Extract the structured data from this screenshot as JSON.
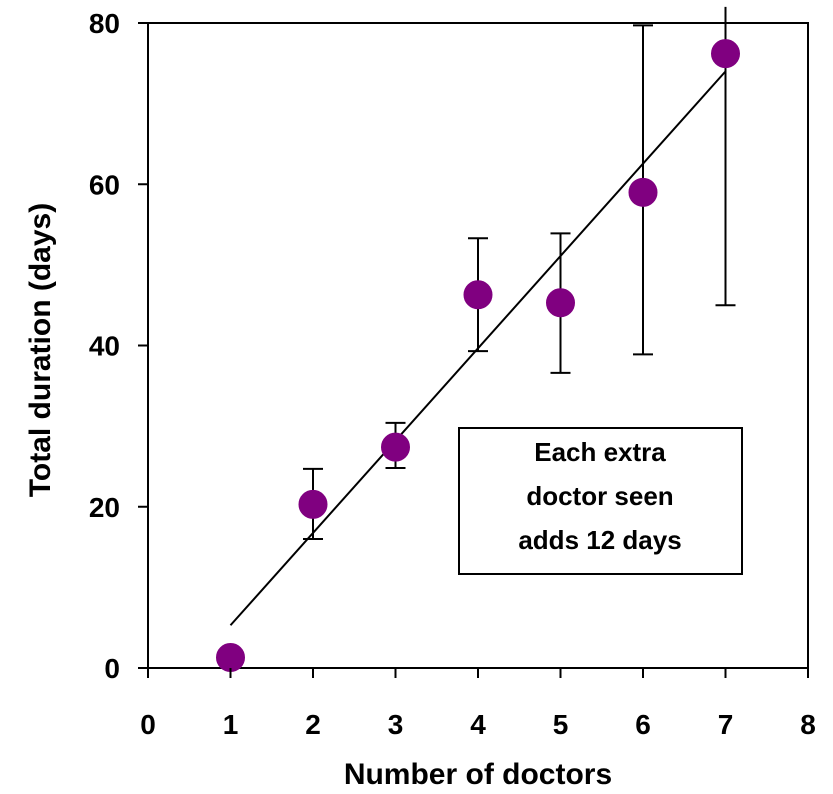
{
  "chart_data": {
    "type": "scatter",
    "xlabel": "Number of doctors",
    "ylabel": "Total duration (days)",
    "xlim": [
      0,
      8
    ],
    "ylim": [
      0,
      80
    ],
    "xticks": [
      "0",
      "1",
      "2",
      "3",
      "4",
      "5",
      "6",
      "7",
      "8"
    ],
    "yticks": [
      "0",
      "20",
      "40",
      "60",
      "80"
    ],
    "grid": false,
    "points": [
      {
        "x": 1,
        "y": 1.3,
        "err_low": null,
        "err_high": null
      },
      {
        "x": 2,
        "y": 20.3,
        "err_low": 16.0,
        "err_high": 24.7
      },
      {
        "x": 3,
        "y": 27.4,
        "err_low": 24.8,
        "err_high": 30.4
      },
      {
        "x": 4,
        "y": 46.3,
        "err_low": 39.3,
        "err_high": 53.3
      },
      {
        "x": 5,
        "y": 45.3,
        "err_low": 36.6,
        "err_high": 53.9
      },
      {
        "x": 6,
        "y": 59.0,
        "err_low": 38.9,
        "err_high": 79.7
      },
      {
        "x": 7,
        "y": 76.2,
        "err_low": 45.0,
        "err_high": 82.0
      }
    ],
    "trendline": {
      "x": [
        1,
        7
      ],
      "y": [
        5.3,
        74.0
      ]
    },
    "annotation": [
      "Each extra",
      "doctor seen",
      "adds 12 days"
    ],
    "colors": {
      "marker": "#800080",
      "line": "#000000",
      "axis": "#000000"
    }
  }
}
